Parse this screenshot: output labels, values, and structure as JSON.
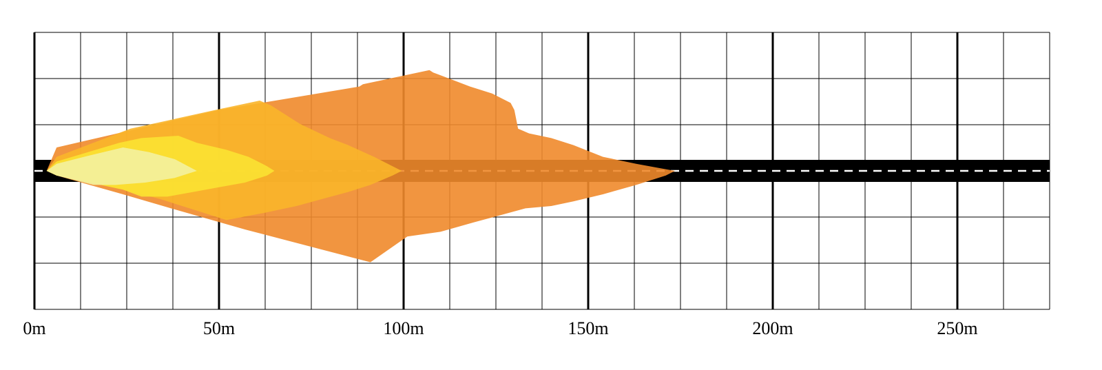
{
  "chart_data": {
    "type": "area",
    "title": "",
    "xlabel": "",
    "ylabel": "",
    "xlim": [
      0,
      275
    ],
    "grid": true,
    "x_ticks": [
      {
        "value": 0,
        "label": "0m"
      },
      {
        "value": 50,
        "label": "50m"
      },
      {
        "value": 100,
        "label": "100m"
      },
      {
        "value": 150,
        "label": "150m"
      },
      {
        "value": 200,
        "label": "200m"
      },
      {
        "value": 250,
        "label": "250m"
      }
    ],
    "series": [
      {
        "color": "#ef8a2b",
        "outline": [
          [
            3.3,
            0
          ],
          [
            6,
            5
          ],
          [
            50,
            13
          ],
          [
            88,
            18
          ],
          [
            89,
            18.5
          ],
          [
            107,
            21.5
          ],
          [
            108,
            21
          ],
          [
            113,
            19.5
          ],
          [
            118,
            18
          ],
          [
            124,
            16.5
          ],
          [
            129,
            14.5
          ],
          [
            130,
            13
          ],
          [
            131,
            9
          ],
          [
            134,
            8
          ],
          [
            140,
            7
          ],
          [
            146,
            5.5
          ],
          [
            154,
            3
          ],
          [
            163,
            1.5
          ],
          [
            170,
            0.5
          ],
          [
            173.5,
            0
          ],
          [
            171,
            -1
          ],
          [
            163,
            -3
          ],
          [
            154,
            -5
          ],
          [
            146,
            -6.5
          ],
          [
            140,
            -7.5
          ],
          [
            133,
            -8
          ],
          [
            126,
            -9.5
          ],
          [
            119,
            -11
          ],
          [
            110,
            -13
          ],
          [
            101,
            -14
          ],
          [
            91,
            -19.5
          ],
          [
            57,
            -12.5
          ],
          [
            37,
            -8
          ],
          [
            24,
            -5
          ],
          [
            6,
            -1
          ],
          [
            3.3,
            0
          ]
        ]
      },
      {
        "color": "#f9b52a",
        "outline": [
          [
            3.3,
            0
          ],
          [
            6,
            3
          ],
          [
            26,
            9
          ],
          [
            49,
            13
          ],
          [
            61,
            15
          ],
          [
            64,
            14
          ],
          [
            72,
            10
          ],
          [
            80,
            7
          ],
          [
            85,
            5.5
          ],
          [
            92,
            3
          ],
          [
            97,
            1
          ],
          [
            99.5,
            0
          ],
          [
            97,
            -1
          ],
          [
            91,
            -3
          ],
          [
            85,
            -4.5
          ],
          [
            78,
            -6
          ],
          [
            71,
            -7.5
          ],
          [
            62,
            -9
          ],
          [
            52,
            -10.5
          ],
          [
            42,
            -8
          ],
          [
            34,
            -6
          ],
          [
            24,
            -4
          ],
          [
            6,
            -1
          ],
          [
            3.3,
            0
          ]
        ]
      },
      {
        "color": "#fbe232",
        "outline": [
          [
            3.3,
            0
          ],
          [
            6,
            2
          ],
          [
            23,
            6
          ],
          [
            29,
            7
          ],
          [
            39,
            7.5
          ],
          [
            44,
            6
          ],
          [
            52,
            4.5
          ],
          [
            58,
            3
          ],
          [
            63,
            1
          ],
          [
            65,
            0
          ],
          [
            63,
            -1
          ],
          [
            57,
            -2.5
          ],
          [
            50,
            -3.5
          ],
          [
            43,
            -4.5
          ],
          [
            36,
            -5.5
          ],
          [
            29,
            -5.5
          ],
          [
            24,
            -4
          ],
          [
            6,
            -1
          ],
          [
            3.3,
            0
          ]
        ]
      },
      {
        "color": "#f3f1a0",
        "outline": [
          [
            3.3,
            0
          ],
          [
            6,
            1.5
          ],
          [
            16,
            3.5
          ],
          [
            24,
            5
          ],
          [
            31,
            4
          ],
          [
            38,
            2.5
          ],
          [
            44,
            0
          ],
          [
            38,
            -1.5
          ],
          [
            30,
            -2.5
          ],
          [
            22,
            -3
          ],
          [
            16,
            -3
          ],
          [
            6,
            -1
          ],
          [
            3.3,
            0
          ]
        ]
      }
    ]
  }
}
